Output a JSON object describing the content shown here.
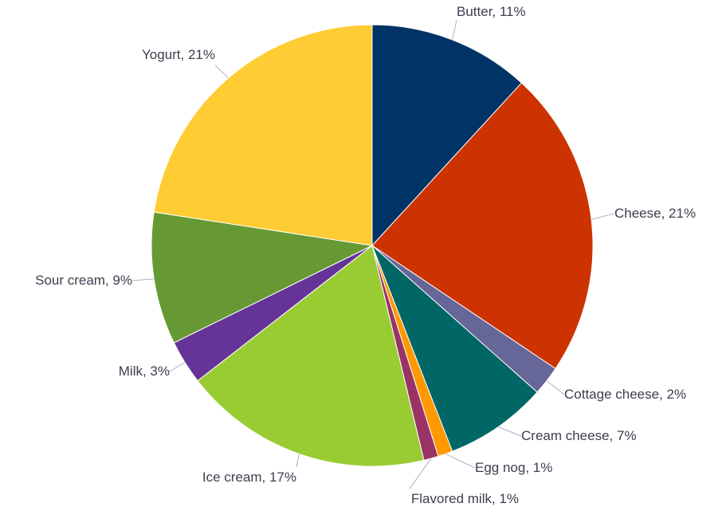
{
  "chart_data": {
    "type": "pie",
    "slices": [
      {
        "label": "Butter, 11%",
        "value": 11,
        "color": "#003366"
      },
      {
        "label": "Cheese, 21%",
        "value": 21,
        "color": "#cc3300"
      },
      {
        "label": "Cottage cheese, 2%",
        "value": 2,
        "color": "#666699"
      },
      {
        "label": "Cream cheese, 7%",
        "value": 7,
        "color": "#006666"
      },
      {
        "label": "Egg nog, 1%",
        "value": 1,
        "color": "#ff9900"
      },
      {
        "label": "Flavored milk, 1%",
        "value": 1,
        "color": "#993366"
      },
      {
        "label": "Ice cream, 17%",
        "value": 17,
        "color": "#99cc33"
      },
      {
        "label": "Milk, 3%",
        "value": 3,
        "color": "#663399"
      },
      {
        "label": "Sour cream, 9%",
        "value": 9,
        "color": "#669933"
      },
      {
        "label": "Yogurt, 21%",
        "value": 21,
        "color": "#ffcc33"
      }
    ]
  }
}
